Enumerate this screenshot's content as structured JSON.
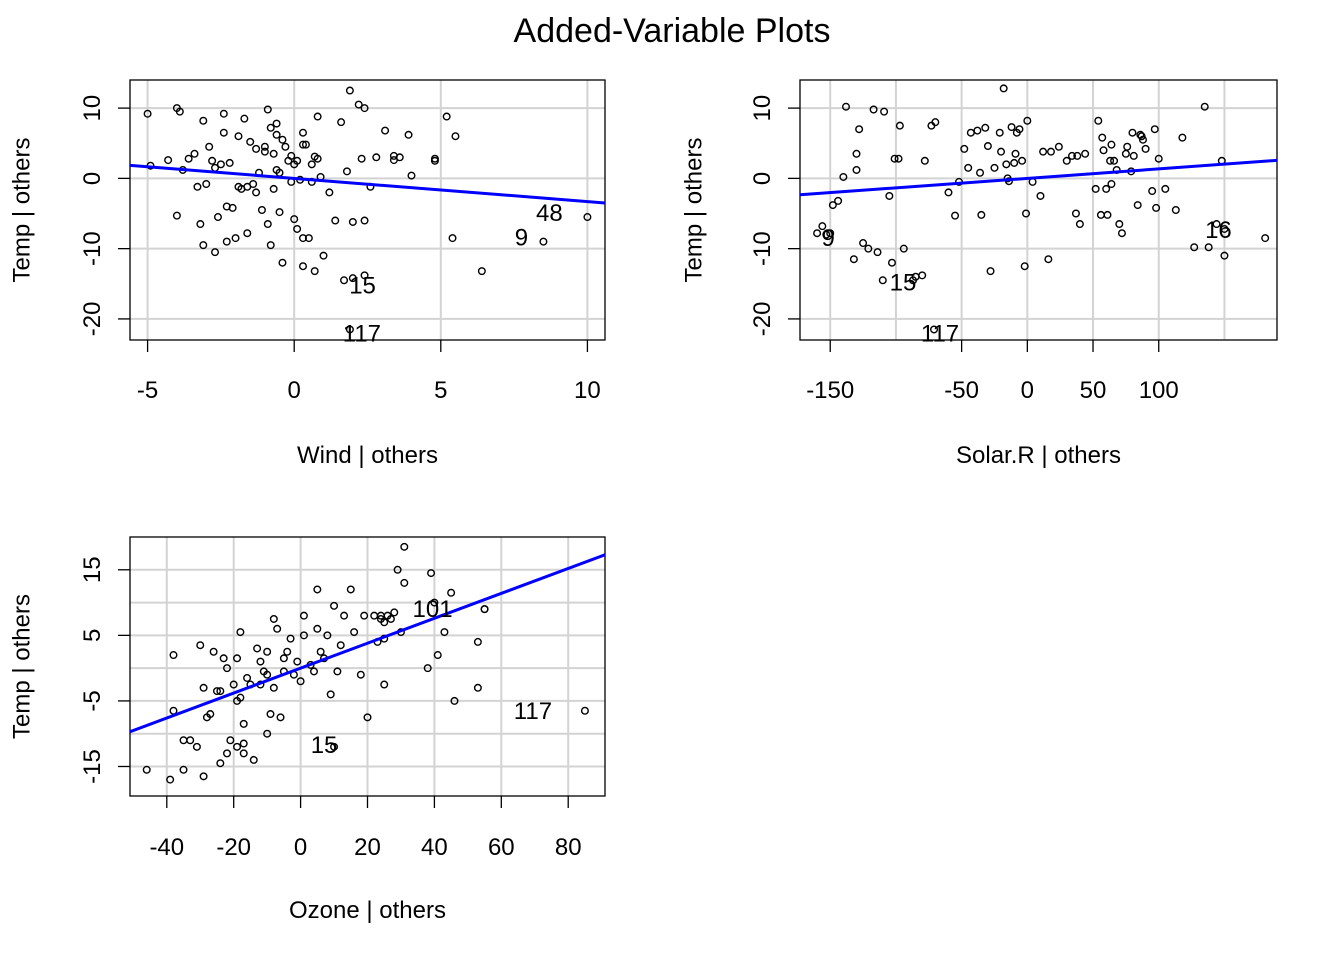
{
  "title": "Added-Variable Plots",
  "chart_data": [
    {
      "type": "scatter",
      "id": "wind",
      "xlabel": "Wind | others",
      "ylabel": "Temp  | others",
      "xlim": [
        -5.6,
        10.6
      ],
      "ylim": [
        -23,
        14
      ],
      "xticks": [
        -5,
        0,
        5,
        10
      ],
      "yticks": [
        -20,
        -10,
        0,
        10
      ],
      "grid": true,
      "fit_line": {
        "slope": -0.33,
        "intercept": 0.0,
        "color": "#0000ff"
      },
      "labeled_points": [
        {
          "x": 10.0,
          "y": -5.5,
          "label": "48"
        },
        {
          "x": 8.5,
          "y": -9.0,
          "label": "9"
        },
        {
          "x": 2.4,
          "y": -13.8,
          "label": "15"
        },
        {
          "x": 1.9,
          "y": -21.5,
          "label": "117"
        }
      ],
      "points": [
        [
          -5,
          9.2
        ],
        [
          -4.9,
          1.8
        ],
        [
          -4.3,
          2.6
        ],
        [
          -4,
          10
        ],
        [
          -3.9,
          9.5
        ],
        [
          -4,
          -5.3
        ],
        [
          -3.8,
          1.2
        ],
        [
          -3.6,
          2.8
        ],
        [
          -3.4,
          3.5
        ],
        [
          -3.3,
          -1.2
        ],
        [
          -3.2,
          -6.5
        ],
        [
          -3.1,
          8.2
        ],
        [
          -3.1,
          -9.5
        ],
        [
          -3,
          -0.8
        ],
        [
          -2.9,
          4.5
        ],
        [
          -2.8,
          2.5
        ],
        [
          -2.7,
          1.5
        ],
        [
          -2.7,
          -10.5
        ],
        [
          -2.6,
          -5.5
        ],
        [
          -2.5,
          2
        ],
        [
          -2.4,
          9.2
        ],
        [
          -2.4,
          6.5
        ],
        [
          -2.3,
          -9
        ],
        [
          -2.3,
          -4
        ],
        [
          -2.2,
          2.2
        ],
        [
          -2.1,
          -4.2
        ],
        [
          -2,
          -8.5
        ],
        [
          -1.9,
          6
        ],
        [
          -1.9,
          -1.2
        ],
        [
          -1.8,
          -1.5
        ],
        [
          -1.7,
          8.5
        ],
        [
          -1.6,
          -7.8
        ],
        [
          -1.6,
          -1.2
        ],
        [
          -1.5,
          5.2
        ],
        [
          -1.4,
          -0.8
        ],
        [
          -1.3,
          4.2
        ],
        [
          -1.3,
          -2
        ],
        [
          -1.2,
          0.8
        ],
        [
          -1.1,
          -4.5
        ],
        [
          -1,
          4.5
        ],
        [
          -1,
          3.8
        ],
        [
          -0.9,
          -6.5
        ],
        [
          -0.9,
          9.8
        ],
        [
          -0.8,
          -9.5
        ],
        [
          -0.8,
          7.2
        ],
        [
          -0.7,
          -1.5
        ],
        [
          -0.7,
          3.5
        ],
        [
          -0.6,
          6.2
        ],
        [
          -0.6,
          7.8
        ],
        [
          -0.6,
          1.2
        ],
        [
          -0.5,
          -4.8
        ],
        [
          -0.5,
          0.8
        ],
        [
          -0.4,
          -12
        ],
        [
          -0.4,
          5.5
        ],
        [
          -0.3,
          4.5
        ],
        [
          -0.2,
          2.5
        ],
        [
          -0.1,
          -0.5
        ],
        [
          -0.1,
          3.2
        ],
        [
          0,
          -5.8
        ],
        [
          0,
          2
        ],
        [
          0.1,
          -7.2
        ],
        [
          0.1,
          2.5
        ],
        [
          0.2,
          -0.2
        ],
        [
          0.3,
          4.8
        ],
        [
          0.3,
          -8.5
        ],
        [
          0.3,
          6.5
        ],
        [
          0.3,
          -12.5
        ],
        [
          0.4,
          4.8
        ],
        [
          0.5,
          -8.5
        ],
        [
          0.6,
          -0.5
        ],
        [
          0.6,
          2
        ],
        [
          0.7,
          3.1
        ],
        [
          0.7,
          -13.2
        ],
        [
          0.8,
          2.8
        ],
        [
          0.8,
          8.8
        ],
        [
          0.9,
          0.2
        ],
        [
          1,
          -11
        ],
        [
          1.2,
          -2
        ],
        [
          1.4,
          -6
        ],
        [
          1.6,
          8
        ],
        [
          1.7,
          -14.5
        ],
        [
          1.8,
          1
        ],
        [
          1.9,
          12.5
        ],
        [
          2,
          -6.2
        ],
        [
          2,
          -14.2
        ],
        [
          2.2,
          10.5
        ],
        [
          2.3,
          2.8
        ],
        [
          2.4,
          -6
        ],
        [
          2.4,
          10
        ],
        [
          2.6,
          -1.2
        ],
        [
          2.8,
          3
        ],
        [
          3.1,
          6.8
        ],
        [
          3.4,
          2.6
        ],
        [
          3.4,
          3.2
        ],
        [
          3.6,
          3
        ],
        [
          3.9,
          6.2
        ],
        [
          4,
          0.4
        ],
        [
          4.8,
          2.5
        ],
        [
          4.8,
          2.8
        ],
        [
          5.2,
          8.8
        ],
        [
          5.4,
          -8.5
        ],
        [
          5.5,
          6
        ],
        [
          6.4,
          -13.2
        ]
      ]
    },
    {
      "type": "scatter",
      "id": "solar",
      "xlabel": "Solar.R | others",
      "ylabel": "Temp  | others",
      "xlim": [
        -173,
        190
      ],
      "ylim": [
        -23,
        14
      ],
      "xticks": [
        -150,
        -50,
        0,
        50,
        100
      ],
      "grid_x": [
        -150,
        -100,
        -50,
        0,
        50,
        100,
        150
      ],
      "yticks": [
        -20,
        -10,
        0,
        10
      ],
      "grid": true,
      "fit_line": {
        "slope": 0.0135,
        "intercept": 0.0,
        "color": "#0000ff"
      },
      "labeled_points": [
        {
          "x": -150,
          "y": -7.8,
          "label": "9"
        },
        {
          "x": 150,
          "y": -7.2,
          "label": "16"
        },
        {
          "x": -87,
          "y": -14.5,
          "label": "15"
        },
        {
          "x": -71,
          "y": -21.5,
          "label": "117"
        }
      ],
      "points": [
        [
          -160,
          -7.8
        ],
        [
          -156,
          -6.8
        ],
        [
          -153,
          -8
        ],
        [
          -148,
          -3.8
        ],
        [
          -144,
          -3.2
        ],
        [
          -140,
          0.2
        ],
        [
          -138,
          10.2
        ],
        [
          -132,
          -11.5
        ],
        [
          -130,
          3.5
        ],
        [
          -130,
          1.2
        ],
        [
          -128,
          7
        ],
        [
          -125,
          -9.2
        ],
        [
          -121,
          -10
        ],
        [
          -117,
          9.8
        ],
        [
          -114,
          -10.5
        ],
        [
          -110,
          -14.5
        ],
        [
          -109,
          9.5
        ],
        [
          -105,
          -2.5
        ],
        [
          -103,
          -12
        ],
        [
          -101,
          2.8
        ],
        [
          -98,
          2.8
        ],
        [
          -97,
          7.5
        ],
        [
          -94,
          -10
        ],
        [
          -85,
          -14
        ],
        [
          -80,
          -13.8
        ],
        [
          -78,
          2.5
        ],
        [
          -73,
          7.5
        ],
        [
          -70,
          8
        ],
        [
          -60,
          -2
        ],
        [
          -55,
          -5.3
        ],
        [
          -52,
          -0.5
        ],
        [
          -48,
          4.2
        ],
        [
          -45,
          1.5
        ],
        [
          -43,
          6.5
        ],
        [
          -38,
          6.8
        ],
        [
          -36,
          0.8
        ],
        [
          -35,
          -5.2
        ],
        [
          -32,
          7.2
        ],
        [
          -30,
          4.6
        ],
        [
          -28,
          -13.2
        ],
        [
          -25,
          1.5
        ],
        [
          -21,
          6.5
        ],
        [
          -20,
          3.8
        ],
        [
          -18,
          12.8
        ],
        [
          -16,
          2
        ],
        [
          -15,
          0
        ],
        [
          -14,
          -0.4
        ],
        [
          -12,
          7.3
        ],
        [
          -10,
          2.2
        ],
        [
          -9,
          3.5
        ],
        [
          -8,
          6.5
        ],
        [
          -6,
          7
        ],
        [
          -4,
          2.5
        ],
        [
          -2,
          -12.5
        ],
        [
          -1,
          -5
        ],
        [
          0,
          8.2
        ],
        [
          4,
          -0.5
        ],
        [
          10,
          -2.5
        ],
        [
          12,
          3.8
        ],
        [
          16,
          -11.5
        ],
        [
          18,
          3.8
        ],
        [
          24,
          4.5
        ],
        [
          30,
          2.5
        ],
        [
          34,
          3.2
        ],
        [
          37,
          -5
        ],
        [
          38,
          3.2
        ],
        [
          40,
          -6.5
        ],
        [
          44,
          3.5
        ],
        [
          52,
          -1.5
        ],
        [
          54,
          8.2
        ],
        [
          56,
          -5.2
        ],
        [
          57,
          5.8
        ],
        [
          58,
          4
        ],
        [
          60,
          -1.5
        ],
        [
          61,
          -5.2
        ],
        [
          63,
          2.5
        ],
        [
          64,
          4.8
        ],
        [
          64,
          -0.8
        ],
        [
          66,
          2.5
        ],
        [
          68,
          1.2
        ],
        [
          70,
          -6.5
        ],
        [
          72,
          -7.8
        ],
        [
          75,
          3.5
        ],
        [
          76,
          4.5
        ],
        [
          79,
          1
        ],
        [
          80,
          6.5
        ],
        [
          81,
          3.2
        ],
        [
          84,
          -3.8
        ],
        [
          86,
          6.2
        ],
        [
          87,
          6
        ],
        [
          88,
          5.5
        ],
        [
          90,
          4.2
        ],
        [
          95,
          -1.8
        ],
        [
          97,
          7
        ],
        [
          98,
          -4.2
        ],
        [
          100,
          2.8
        ],
        [
          105,
          -1.5
        ],
        [
          113,
          -4.5
        ],
        [
          118,
          5.8
        ],
        [
          127,
          -9.8
        ],
        [
          135,
          10.2
        ],
        [
          138,
          -9.8
        ],
        [
          144,
          -6.5
        ],
        [
          148,
          2.5
        ],
        [
          150,
          -11
        ],
        [
          181,
          -8.5
        ]
      ]
    },
    {
      "type": "scatter",
      "id": "ozone",
      "xlabel": "Ozone | others",
      "ylabel": "Temp  | others",
      "xlim": [
        -51,
        91
      ],
      "ylim": [
        -19.5,
        20
      ],
      "xticks": [
        -40,
        -20,
        0,
        20,
        40,
        60,
        80
      ],
      "yticks": [
        -15,
        -5,
        5,
        15
      ],
      "grid_y": [
        -15,
        -10,
        -5,
        0,
        5,
        10,
        15
      ],
      "grid": true,
      "fit_line": {
        "slope": 0.19,
        "intercept": 0.0,
        "color": "#0000ff"
      },
      "labeled_points": [
        {
          "x": 85,
          "y": -6.5,
          "label": "117"
        },
        {
          "x": 55,
          "y": 9,
          "label": "101"
        },
        {
          "x": 10,
          "y": -12,
          "label": "15"
        }
      ],
      "points": [
        [
          -46,
          -15.5
        ],
        [
          -38,
          2
        ],
        [
          -39,
          -17
        ],
        [
          -38,
          -6.5
        ],
        [
          -35,
          -11
        ],
        [
          -35,
          -15.5
        ],
        [
          -33,
          -11
        ],
        [
          -31,
          -12
        ],
        [
          -30,
          3.5
        ],
        [
          -29,
          -3
        ],
        [
          -29,
          -16.5
        ],
        [
          -28,
          -7.5
        ],
        [
          -27,
          -7
        ],
        [
          -26,
          2.5
        ],
        [
          -25,
          -3.5
        ],
        [
          -24,
          -3.5
        ],
        [
          -24,
          -14.5
        ],
        [
          -23,
          1.5
        ],
        [
          -22,
          -13
        ],
        [
          -22,
          0
        ],
        [
          -21,
          -11
        ],
        [
          -20,
          -2.5
        ],
        [
          -19,
          -12
        ],
        [
          -19,
          -5
        ],
        [
          -19,
          1.5
        ],
        [
          -18,
          -4.5
        ],
        [
          -18,
          5.5
        ],
        [
          -17,
          -8.5
        ],
        [
          -17,
          -11.5
        ],
        [
          -17,
          -13
        ],
        [
          -16,
          -1.5
        ],
        [
          -15,
          -2.5
        ],
        [
          -14,
          -14
        ],
        [
          -13,
          3
        ],
        [
          -12,
          1
        ],
        [
          -12,
          -2.5
        ],
        [
          -11,
          -0.5
        ],
        [
          -10,
          -1
        ],
        [
          -10,
          2.5
        ],
        [
          -10,
          -10
        ],
        [
          -9,
          -7
        ],
        [
          -8,
          -3
        ],
        [
          -8,
          7.5
        ],
        [
          -7,
          6
        ],
        [
          -6,
          -7.5
        ],
        [
          -5,
          -0.5
        ],
        [
          -5,
          1.5
        ],
        [
          -4,
          2.5
        ],
        [
          -3,
          4.5
        ],
        [
          -2,
          -1
        ],
        [
          -1,
          1
        ],
        [
          0,
          -2
        ],
        [
          1,
          8
        ],
        [
          1,
          5
        ],
        [
          3,
          0.5
        ],
        [
          4,
          -0.5
        ],
        [
          5,
          6
        ],
        [
          5,
          12
        ],
        [
          6,
          2.5
        ],
        [
          7,
          1.5
        ],
        [
          8,
          5
        ],
        [
          9,
          -4
        ],
        [
          10,
          9.5
        ],
        [
          11,
          -0.5
        ],
        [
          12,
          3.5
        ],
        [
          13,
          8
        ],
        [
          15,
          12
        ],
        [
          16,
          5.5
        ],
        [
          18,
          -1
        ],
        [
          19,
          8
        ],
        [
          20,
          -7.5
        ],
        [
          22,
          8
        ],
        [
          23,
          4
        ],
        [
          24,
          8
        ],
        [
          24,
          7.5
        ],
        [
          25,
          7
        ],
        [
          25,
          -2.5
        ],
        [
          25,
          4.5
        ],
        [
          26,
          8
        ],
        [
          27,
          7.5
        ],
        [
          28,
          8.5
        ],
        [
          29,
          15
        ],
        [
          30,
          5.5
        ],
        [
          31,
          18.5
        ],
        [
          31,
          13
        ],
        [
          38,
          0
        ],
        [
          39,
          14.5
        ],
        [
          40,
          10
        ],
        [
          41,
          2
        ],
        [
          43,
          5.5
        ],
        [
          45,
          11.5
        ],
        [
          46,
          -5
        ],
        [
          53,
          4
        ],
        [
          53,
          -3
        ],
        [
          55,
          9
        ]
      ]
    }
  ]
}
